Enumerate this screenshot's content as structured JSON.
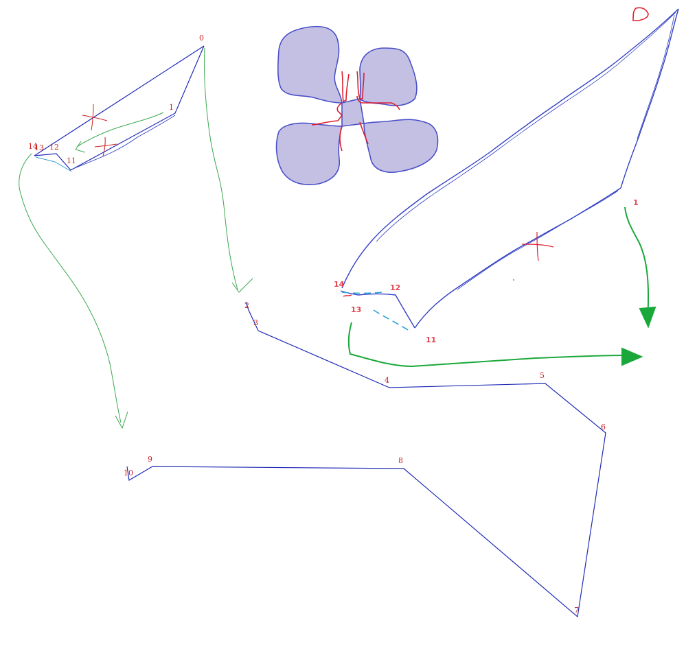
{
  "colors": {
    "path_blue": "#1f2bb5",
    "sketch_blue": "#3340c4",
    "label_red": "#cc1f1f",
    "label_red_light": "#e0454f",
    "arrow_green": "#3aa84f",
    "arrow_green_bold": "#1aa83a",
    "shape_fill": "#c4c0e4",
    "shape_stroke": "#4a50c8",
    "dash_cyan": "#2aa2d6"
  },
  "large_path": {
    "vertex_labels": [
      "0",
      "1",
      "2",
      "3",
      "4",
      "5",
      "6",
      "7",
      "8",
      "9",
      "10",
      "11",
      "12",
      "13",
      "14"
    ]
  },
  "small_polygon": {
    "vertex_labels": [
      "1",
      "11",
      "12",
      "13",
      "14"
    ]
  },
  "cross_marker": {
    "description_icons": [
      "crosshair-icon"
    ]
  }
}
